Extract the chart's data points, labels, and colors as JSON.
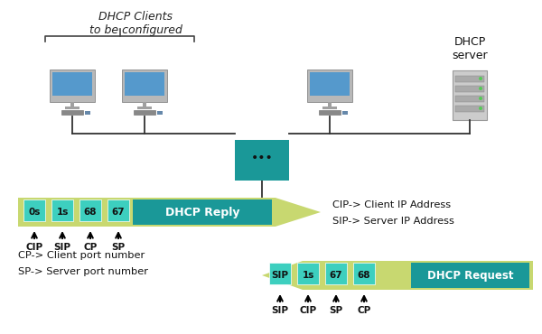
{
  "bg_color": "#ffffff",
  "teal_color": "#1a9898",
  "light_green_arrow": "#c8d870",
  "teal_box": "#1a9898",
  "switch_color": "#1a9898",
  "title": "DHCP Clients\nto be configured",
  "dhcp_server_label": "DHCP\nserver",
  "reply_boxes": [
    "0s",
    "1s",
    "68",
    "67"
  ],
  "reply_labels": [
    "CIP",
    "SIP",
    "CP",
    "SP"
  ],
  "request_boxes": [
    "SIP",
    "1s",
    "67",
    "68"
  ],
  "request_labels": [
    "SIP",
    "CIP",
    "SP",
    "CP"
  ],
  "reply_text": "DHCP Reply",
  "request_text": "DHCP Request",
  "legend_right": [
    "CIP-> Client IP Address",
    "SIP-> Server IP Address"
  ],
  "legend_bottom": [
    "CP-> Client port number",
    "SP-> Server port number"
  ]
}
